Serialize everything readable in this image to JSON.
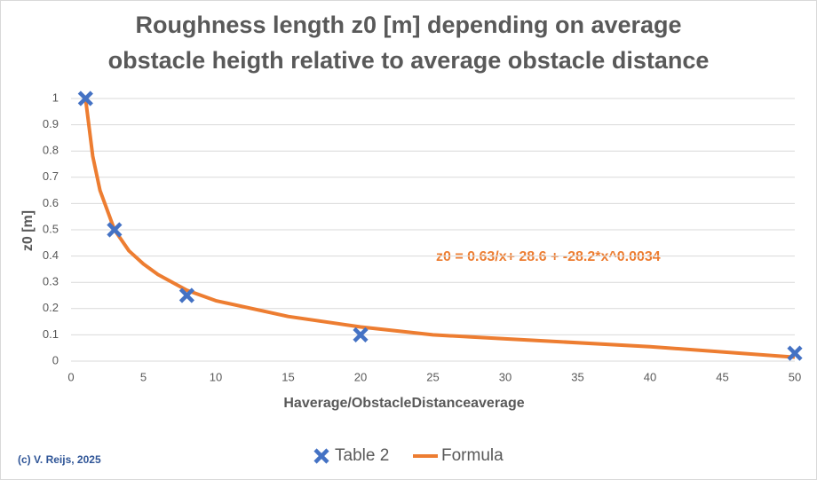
{
  "chart_data": {
    "type": "scatter",
    "title": [
      "Roughness length z0 [m] depending on average",
      "obstacle heigth relative to average obstacle distance"
    ],
    "x_label": "Haverage/ObstacleDistanceaverage",
    "y_label": "z0 [m]",
    "annotation": "z0 = 0.63/x+ 28.6 + -28.2*x^0.0034",
    "footer": "(c) V. Reijs, 2025",
    "xlim": [
      0,
      50
    ],
    "xticks": [
      0,
      5,
      10,
      15,
      20,
      25,
      30,
      35,
      40,
      45,
      50
    ],
    "ylim": [
      0,
      1
    ],
    "yticks": [
      0,
      0.1,
      0.2,
      0.3,
      0.4,
      0.5,
      0.6,
      0.7,
      0.8,
      0.9,
      1
    ],
    "grid": true,
    "legend": "bottom",
    "series": [
      {
        "name": "Table 2",
        "color": "#4472c4",
        "mode": "markers",
        "x": [
          1,
          3,
          8,
          20,
          50
        ],
        "values": [
          1,
          0.5,
          0.25,
          0.1,
          0.03
        ]
      },
      {
        "name": "Formula",
        "color": "#ed7d31",
        "mode": "line",
        "x": [
          1,
          1.5,
          2,
          3,
          4,
          5,
          6,
          8,
          10,
          15,
          20,
          25,
          30,
          40,
          50
        ],
        "values": [
          1.0,
          0.78,
          0.65,
          0.5,
          0.42,
          0.37,
          0.33,
          0.27,
          0.23,
          0.17,
          0.13,
          0.1,
          0.085,
          0.055,
          0.015
        ]
      }
    ]
  }
}
